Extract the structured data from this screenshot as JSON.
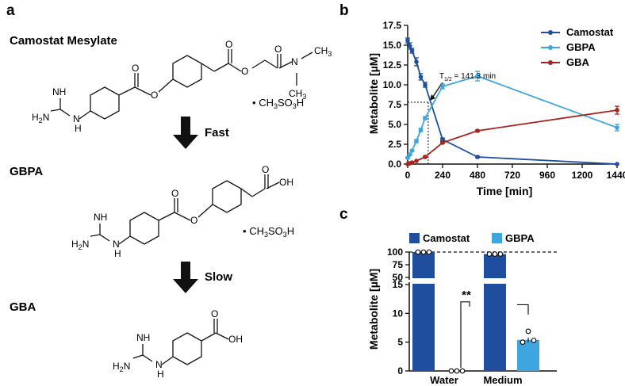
{
  "panels": {
    "a": "a",
    "b": "b",
    "c": "c"
  },
  "panel_a": {
    "compound1_name": "Camostat Mesylate",
    "compound2_name": "GBPA",
    "compound3_name": "GBA",
    "arrow1_label": "Fast",
    "arrow2_label": "Slow",
    "salt1": "• CH3SO3H",
    "salt2": "• CH3SO3H",
    "atoms": {
      "nh": "NH",
      "h2n": "H2N",
      "h": "H",
      "n": "N",
      "o": "O",
      "oh": "OH"
    }
  },
  "chart_data": [
    {
      "type": "line",
      "title": "",
      "xlabel": "Time [min]",
      "ylabel": "Metabolite [µM]",
      "xlim": [
        0,
        1440
      ],
      "ylim": [
        0,
        17.5
      ],
      "xticks": [
        0,
        240,
        480,
        720,
        960,
        1200,
        1440
      ],
      "yticks": [
        0.0,
        2.5,
        5.0,
        7.5,
        10.0,
        12.5,
        15.0,
        17.5
      ],
      "ytick_labels": [
        "0.0",
        "2.5",
        "5.0",
        "7.5",
        "10.0",
        "12.5",
        "15.0",
        "17.5"
      ],
      "legend": "top-right",
      "annotation": "T1/2 = 141.3 min",
      "annotation_value": 141.3,
      "series": [
        {
          "name": "Camostat",
          "color": "#1f4e9e",
          "x": [
            0,
            15,
            30,
            60,
            90,
            120,
            240,
            480,
            1440
          ],
          "y": [
            15.6,
            14.9,
            14.3,
            12.9,
            11.0,
            10.0,
            3.1,
            0.9,
            0.0
          ],
          "err": [
            0.3,
            0.4,
            0.3,
            0.5,
            0.4,
            0.3,
            0.2,
            0.1,
            0.0
          ]
        },
        {
          "name": "GBPA",
          "color": "#3ea6de",
          "x": [
            0,
            15,
            30,
            60,
            90,
            120,
            240,
            480,
            1440
          ],
          "y": [
            0.8,
            1.2,
            1.7,
            2.9,
            4.3,
            5.8,
            9.8,
            11.1,
            4.6
          ],
          "err": [
            0.1,
            0.1,
            0.1,
            0.2,
            0.2,
            0.2,
            0.3,
            0.6,
            0.4
          ]
        },
        {
          "name": "GBA",
          "color": "#a8231e",
          "x": [
            0,
            15,
            30,
            60,
            120,
            240,
            480,
            1440
          ],
          "y": [
            0.0,
            0.1,
            0.2,
            0.4,
            0.9,
            2.7,
            4.2,
            6.8
          ],
          "err": [
            0.0,
            0.0,
            0.0,
            0.0,
            0.1,
            0.1,
            0.1,
            0.5
          ]
        }
      ]
    },
    {
      "type": "bar",
      "title": "",
      "xlabel": "",
      "ylabel": "Metabolite [µM]",
      "categories": [
        "Water",
        "Medium"
      ],
      "lower_ylim": [
        0,
        15
      ],
      "upper_ylim": [
        50,
        100
      ],
      "lower_ticks": [
        0,
        5,
        10,
        15
      ],
      "upper_ticks": [
        50,
        75,
        100
      ],
      "legend": "top",
      "reference_line": 100,
      "significance": "**",
      "series": [
        {
          "name": "Camostat",
          "color": "#1f4e9e",
          "values": [
            100,
            96
          ]
        },
        {
          "name": "GBPA",
          "color": "#3ea6de",
          "values": [
            0,
            5.4
          ]
        }
      ],
      "points": {
        "Water": {
          "Camostat": [
            100,
            100,
            100
          ],
          "GBPA": [
            0,
            0,
            0
          ]
        },
        "Medium": {
          "Camostat": [
            96,
            96,
            96
          ],
          "GBPA": [
            5.0,
            6.2,
            5.3
          ]
        }
      }
    }
  ]
}
